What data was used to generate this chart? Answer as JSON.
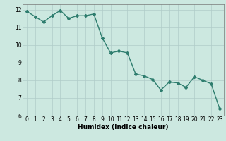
{
  "x": [
    0,
    1,
    2,
    3,
    4,
    5,
    6,
    7,
    8,
    9,
    10,
    11,
    12,
    13,
    14,
    15,
    16,
    17,
    18,
    19,
    20,
    21,
    22,
    23
  ],
  "y": [
    11.9,
    11.6,
    11.3,
    11.65,
    11.95,
    11.5,
    11.65,
    11.65,
    11.75,
    10.4,
    9.55,
    9.65,
    9.55,
    8.35,
    8.25,
    8.05,
    7.45,
    7.9,
    7.85,
    7.6,
    8.2,
    8.0,
    7.8,
    6.4
  ],
  "line_color": "#2e7d6e",
  "marker": "D",
  "markersize": 2,
  "linewidth": 1.0,
  "xlabel": "Humidex (Indice chaleur)",
  "ylabel": "",
  "xlim": [
    -0.5,
    23.5
  ],
  "ylim": [
    6,
    12.3
  ],
  "yticks": [
    6,
    7,
    8,
    9,
    10,
    11,
    12
  ],
  "xticks": [
    0,
    1,
    2,
    3,
    4,
    5,
    6,
    7,
    8,
    9,
    10,
    11,
    12,
    13,
    14,
    15,
    16,
    17,
    18,
    19,
    20,
    21,
    22,
    23
  ],
  "bg_color": "#cce8e0",
  "grid_color": "#b0ccc8",
  "tick_label_fontsize": 5.5,
  "xlabel_fontsize": 6.5
}
